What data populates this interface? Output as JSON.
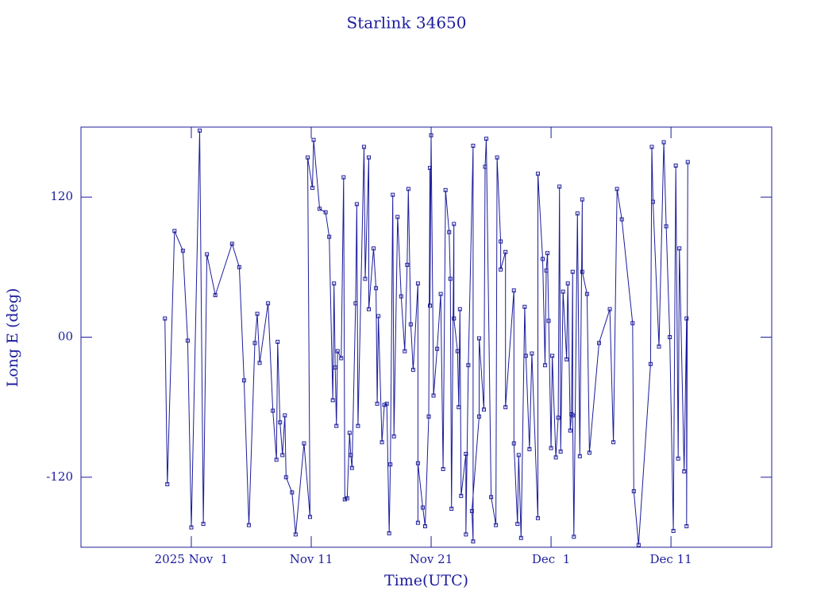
{
  "chart_data": {
    "type": "line",
    "title": "Starlink 34650",
    "x_label": "Time(UTC)",
    "y_label": "Long E (deg)",
    "color": "#1c1c9c",
    "markers": true,
    "x": [
      -2.2,
      -2.0,
      -1.4,
      -0.7,
      -0.3,
      0.0,
      0.7,
      1.0,
      1.3,
      2.0,
      3.4,
      4.0,
      4.4,
      4.8,
      5.3,
      5.5,
      5.7,
      6.4,
      6.8,
      7.1,
      7.2,
      7.4,
      7.6,
      7.8,
      7.9,
      8.4,
      8.7,
      9.4,
      9.9,
      9.7,
      10.1,
      10.2,
      10.7,
      11.2,
      11.5,
      11.8,
      11.9,
      12.0,
      12.1,
      12.2,
      12.5,
      12.7,
      12.8,
      13.0,
      13.2,
      13.3,
      13.4,
      13.7,
      13.8,
      13.9,
      14.4,
      14.5,
      14.8,
      14.8,
      15.2,
      15.4,
      15.5,
      15.6,
      15.9,
      16.1,
      16.3,
      16.5,
      16.6,
      16.8,
      16.9,
      17.2,
      17.5,
      17.8,
      18.0,
      18.1,
      18.3,
      18.5,
      18.9,
      18.9,
      18.9,
      19.3,
      19.5,
      19.8,
      19.9,
      19.9,
      20.0,
      20.2,
      20.5,
      20.8,
      21.0,
      21.2,
      21.5,
      21.6,
      21.7,
      21.9,
      21.9,
      22.2,
      22.3,
      22.4,
      22.5,
      22.9,
      22.9,
      23.1,
      23.5,
      23.5,
      23.4,
      24.0,
      24.0,
      24.4,
      24.5,
      24.6,
      25.0,
      25.4,
      25.5,
      25.8,
      25.8,
      26.2,
      26.2,
      26.9,
      26.9,
      27.2,
      27.3,
      27.5,
      27.8,
      27.9,
      28.2,
      28.4,
      28.9,
      28.9,
      29.3,
      29.5,
      29.6,
      29.7,
      29.8,
      30.0,
      30.1,
      30.4,
      30.6,
      30.7,
      30.8,
      31.0,
      31.3,
      31.4,
      31.6,
      31.7,
      31.8,
      31.8,
      31.9,
      32.2,
      32.4,
      32.6,
      32.6,
      33.0,
      33.2,
      34.0,
      34.9,
      35.2,
      35.5,
      35.9,
      36.8,
      36.9,
      37.3,
      38.3,
      38.4,
      38.5,
      39.0,
      39.4,
      39.6,
      39.9,
      40.2,
      40.4,
      40.6,
      40.7,
      41.1,
      41.3,
      41.3,
      41.4
    ],
    "values": [
      16,
      -126,
      91,
      74,
      -3,
      -163,
      177,
      -160,
      71,
      36,
      80,
      60,
      -37,
      -161,
      -5,
      20,
      -22,
      29,
      -63,
      -105,
      -4,
      -73,
      -101,
      -67,
      -120,
      -133,
      -169,
      -91,
      -154,
      154,
      128,
      169,
      110,
      107,
      86,
      -54,
      46,
      -26,
      -76,
      -12,
      -18,
      137,
      -139,
      -138,
      -82,
      -101,
      -112,
      29,
      114,
      -76,
      163,
      50,
      154,
      24,
      76,
      42,
      -57,
      18,
      -90,
      -58,
      -57,
      -168,
      -109,
      122,
      -85,
      103,
      35,
      -12,
      62,
      127,
      11,
      -28,
      46,
      -159,
      -108,
      -146,
      -162,
      -68,
      145,
      27,
      173,
      -50,
      -10,
      37,
      -113,
      126,
      90,
      50,
      -147,
      97,
      16,
      -12,
      -60,
      24,
      -136,
      -100,
      -169,
      -24,
      164,
      -175,
      -149,
      -68,
      -1,
      -62,
      146,
      170,
      -137,
      -161,
      154,
      82,
      58,
      73,
      -60,
      40,
      -91,
      -160,
      -101,
      -172,
      26,
      -16,
      -96,
      -14,
      -155,
      140,
      67,
      -24,
      57,
      72,
      14,
      -95,
      -16,
      -103,
      -69,
      129,
      -98,
      39,
      -19,
      46,
      -80,
      -66,
      56,
      -67,
      -171,
      106,
      -102,
      118,
      56,
      37,
      -99,
      -5,
      24,
      -90,
      127,
      101,
      12,
      -132,
      -178,
      -23,
      163,
      116,
      -8,
      167,
      95,
      0,
      -166,
      147,
      -104,
      76,
      -115,
      16,
      -162,
      150
    ],
    "xlim": [
      -9.2,
      48.4
    ],
    "xticks": [
      {
        "value": 0,
        "label": "2025 Nov  1"
      },
      {
        "value": 10,
        "label": "Nov 11"
      },
      {
        "value": 20,
        "label": "Nov 21"
      },
      {
        "value": 30,
        "label": "Dec  1"
      },
      {
        "value": 40,
        "label": "Dec 11"
      }
    ],
    "ylim": [
      -180,
      180
    ],
    "yticks": [
      -120,
      {
        "value": 0,
        "label": "00"
      },
      120
    ]
  }
}
